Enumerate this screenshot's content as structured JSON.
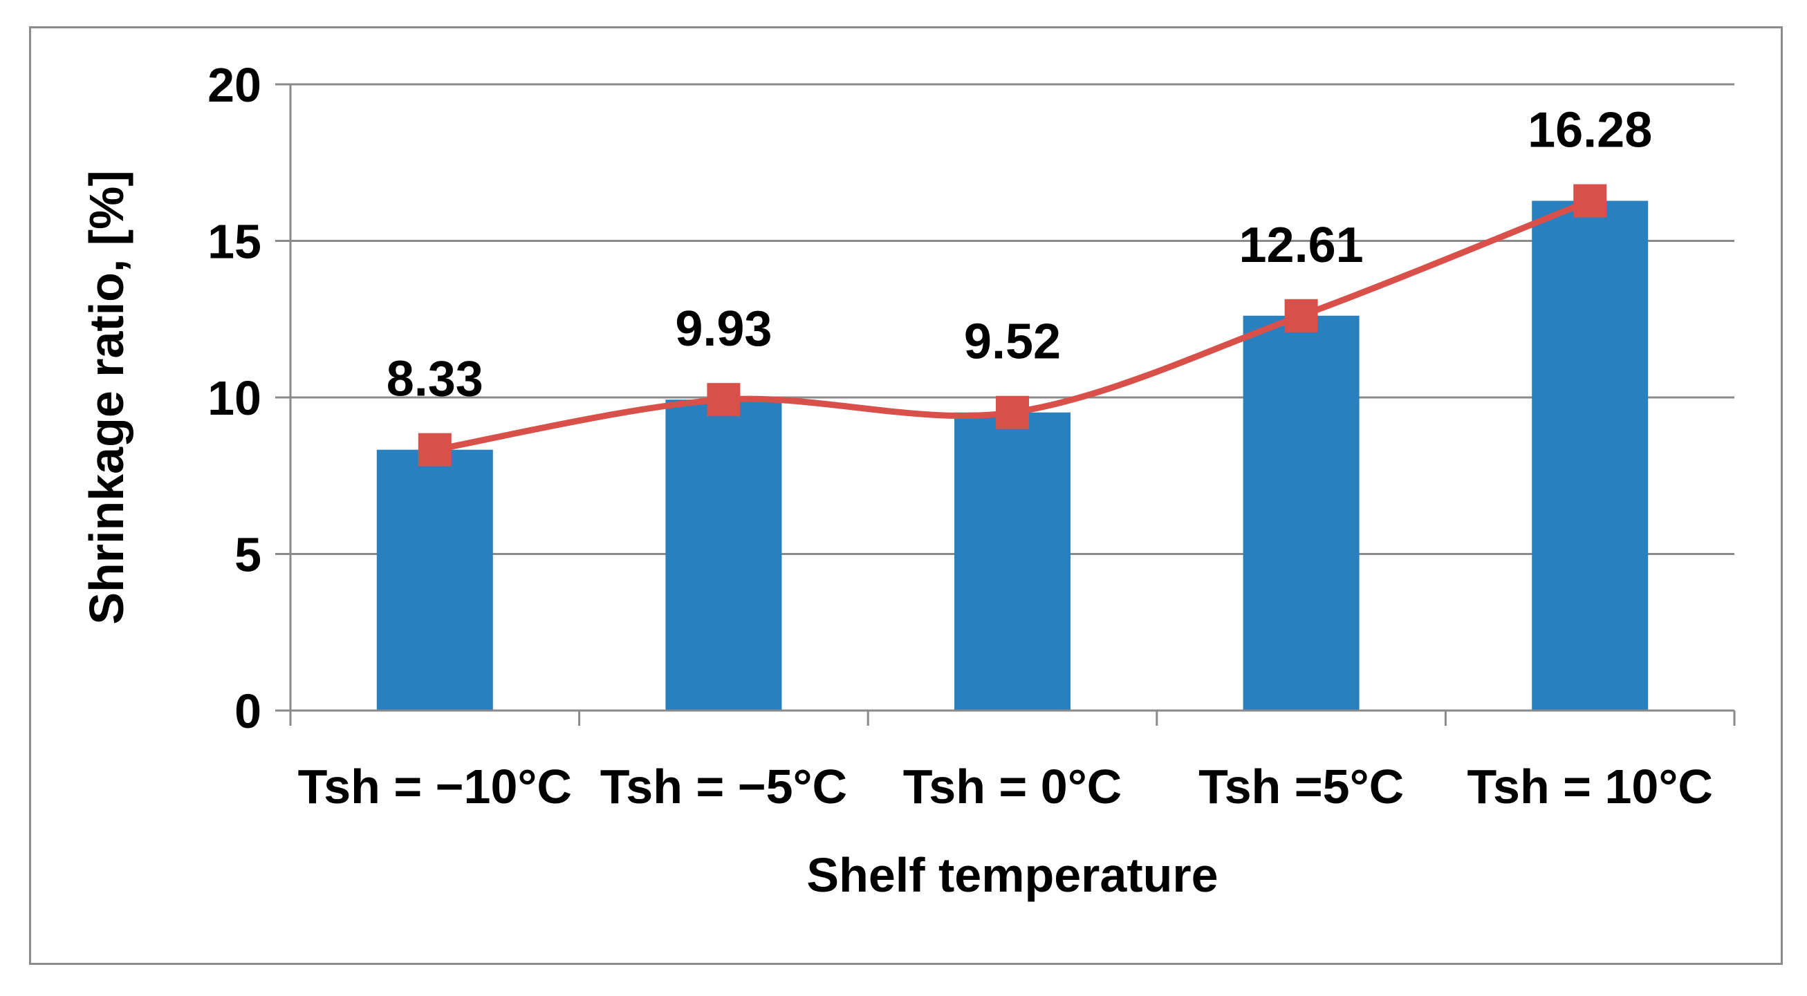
{
  "chart_data": {
    "type": "bar",
    "categories": [
      "Tsh = −10°C",
      "Tsh = −5°C",
      "Tsh = 0°C",
      "Tsh =5°C",
      "Tsh = 10°C"
    ],
    "values": [
      8.33,
      9.93,
      9.52,
      12.61,
      16.28
    ],
    "data_labels": [
      "8.33",
      "9.93",
      "9.52",
      "12.61",
      "16.28"
    ],
    "overlay_line": {
      "type": "line",
      "smooth": true,
      "marker": "square",
      "values": [
        8.33,
        9.93,
        9.52,
        12.61,
        16.28
      ],
      "color": "#d9504a"
    },
    "bar_color": "#2a7fbf",
    "title": "",
    "xlabel": "Shelf temperature",
    "ylabel": "Shrinkage ratio, [%]",
    "ylim": [
      0,
      20
    ],
    "yticks": [
      0,
      5,
      10,
      15,
      20
    ],
    "grid": true,
    "legend": "none"
  }
}
